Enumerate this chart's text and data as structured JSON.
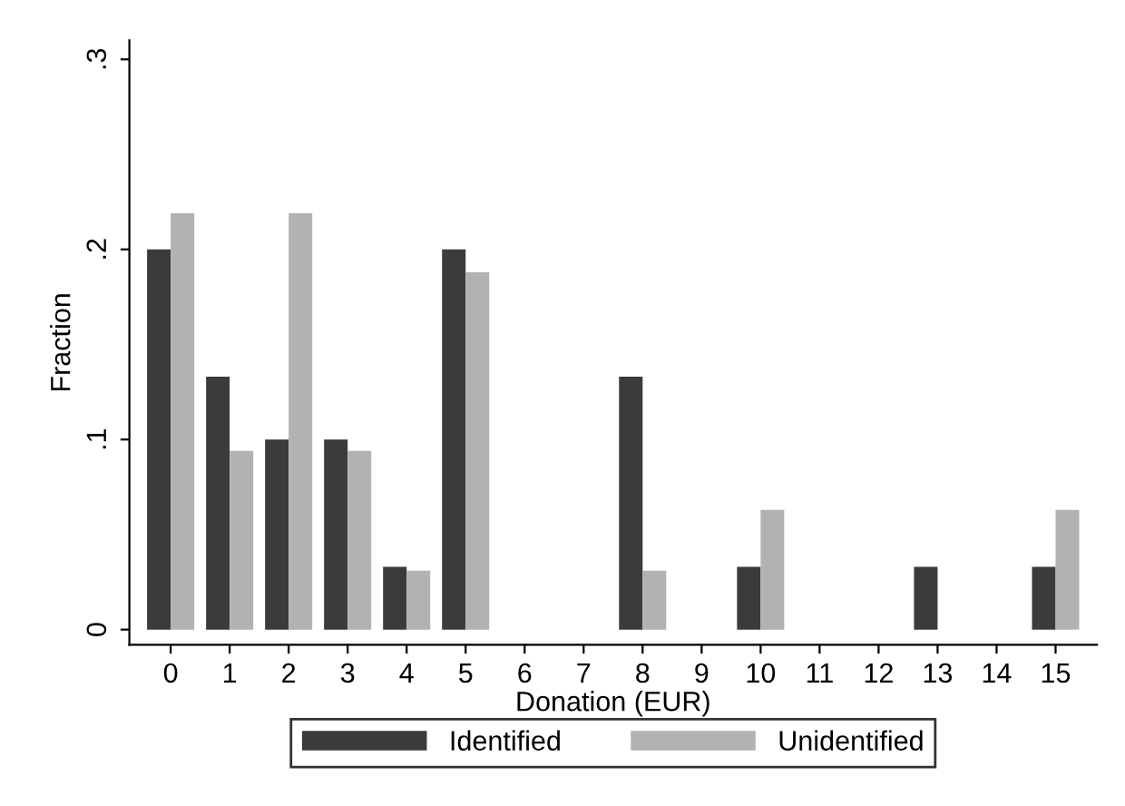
{
  "chart_data": {
    "type": "bar",
    "xlabel": "Donation (EUR)",
    "ylabel": "Fraction",
    "categories": [
      "0",
      "1",
      "2",
      "3",
      "4",
      "5",
      "6",
      "7",
      "8",
      "9",
      "10",
      "11",
      "12",
      "13",
      "14",
      "15"
    ],
    "series": [
      {
        "name": "Identified",
        "color": "#3b3b3b",
        "values": [
          0.2,
          0.133,
          0.1,
          0.1,
          0.033,
          0.2,
          0,
          0,
          0.133,
          0,
          0.033,
          0,
          0,
          0.033,
          0,
          0.033
        ]
      },
      {
        "name": "Unidentified",
        "color": "#b2b2b2",
        "values": [
          0.219,
          0.094,
          0.219,
          0.094,
          0.031,
          0.188,
          0,
          0,
          0.031,
          0,
          0.063,
          0,
          0,
          0,
          0,
          0.063
        ]
      }
    ],
    "ylim": [
      -0.008,
      0.31
    ],
    "yticks": [
      0,
      {
        "value": 0.1,
        "label": ".1"
      },
      {
        "value": 0.2,
        "label": ".2"
      },
      {
        "value": 0.3,
        "label": ".3"
      }
    ],
    "grid": false,
    "legend": "bottom"
  }
}
